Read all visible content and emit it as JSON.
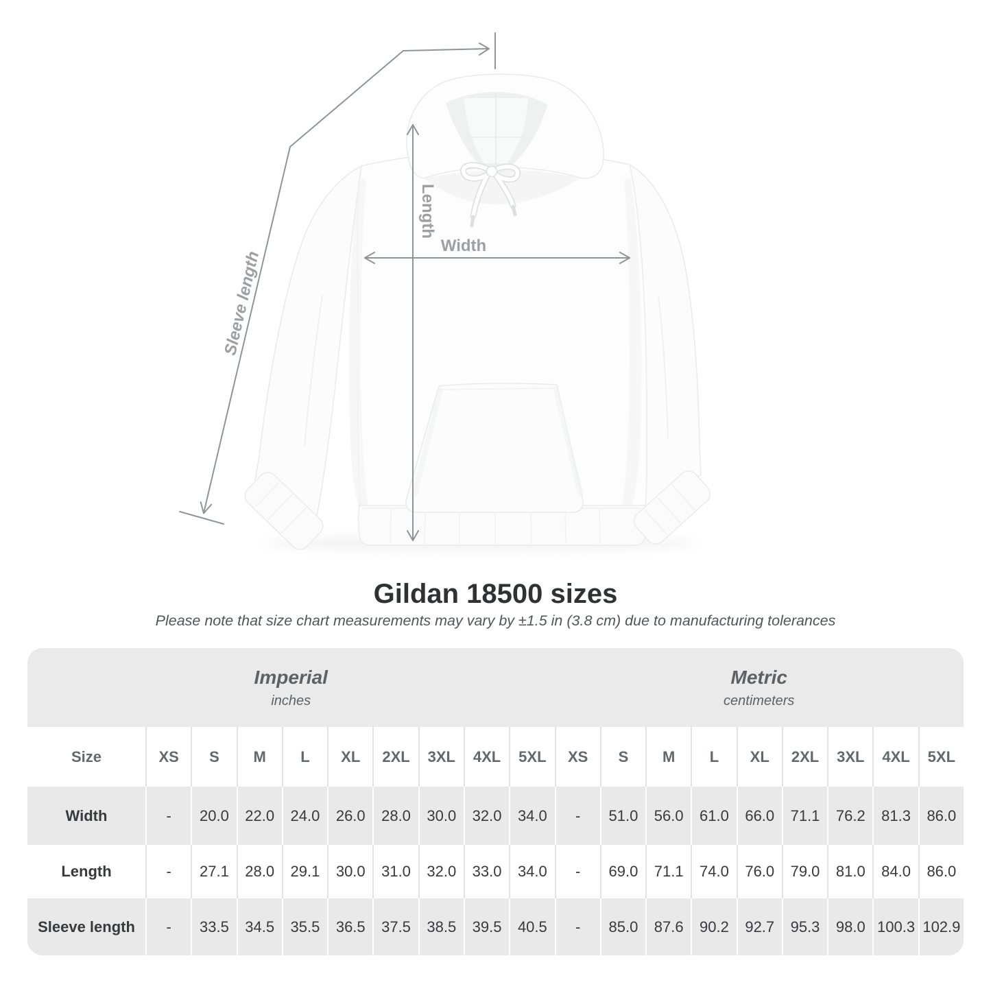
{
  "diagram": {
    "labels": {
      "length": "Length",
      "width": "Width",
      "sleeve": "Sleeve length"
    }
  },
  "title": "Gildan 18500 sizes",
  "subtitle": "Please note that size chart measurements may vary by ±1.5 in (3.8 cm) due to manufacturing tolerances",
  "table": {
    "size_header": "Size",
    "sections": [
      {
        "label": "Imperial",
        "unit": "inches"
      },
      {
        "label": "Metric",
        "unit": "centimeters"
      }
    ],
    "sizes": [
      "XS",
      "S",
      "M",
      "L",
      "XL",
      "2XL",
      "3XL",
      "4XL",
      "5XL"
    ],
    "rows": [
      {
        "label": "Width",
        "imperial": [
          "-",
          "20.0",
          "22.0",
          "24.0",
          "26.0",
          "28.0",
          "30.0",
          "32.0",
          "34.0"
        ],
        "metric": [
          "-",
          "51.0",
          "56.0",
          "61.0",
          "66.0",
          "71.1",
          "76.2",
          "81.3",
          "86.0"
        ]
      },
      {
        "label": "Length",
        "imperial": [
          "-",
          "27.1",
          "28.0",
          "29.1",
          "30.0",
          "31.0",
          "32.0",
          "33.0",
          "34.0"
        ],
        "metric": [
          "-",
          "69.0",
          "71.1",
          "74.0",
          "76.0",
          "79.0",
          "81.0",
          "84.0",
          "86.0"
        ]
      },
      {
        "label": "Sleeve length",
        "imperial": [
          "-",
          "33.5",
          "34.5",
          "35.5",
          "36.5",
          "37.5",
          "38.5",
          "39.5",
          "40.5"
        ],
        "metric": [
          "-",
          "85.0",
          "87.6",
          "90.2",
          "92.7",
          "95.3",
          "98.0",
          "100.3",
          "102.9"
        ]
      }
    ]
  },
  "colors": {
    "band_bg": "#eaeaea",
    "row_gray": "#e9e9e9",
    "arrow": "#8f9498",
    "measure_label": "#9ba0a4",
    "title_text": "#2f3234"
  }
}
